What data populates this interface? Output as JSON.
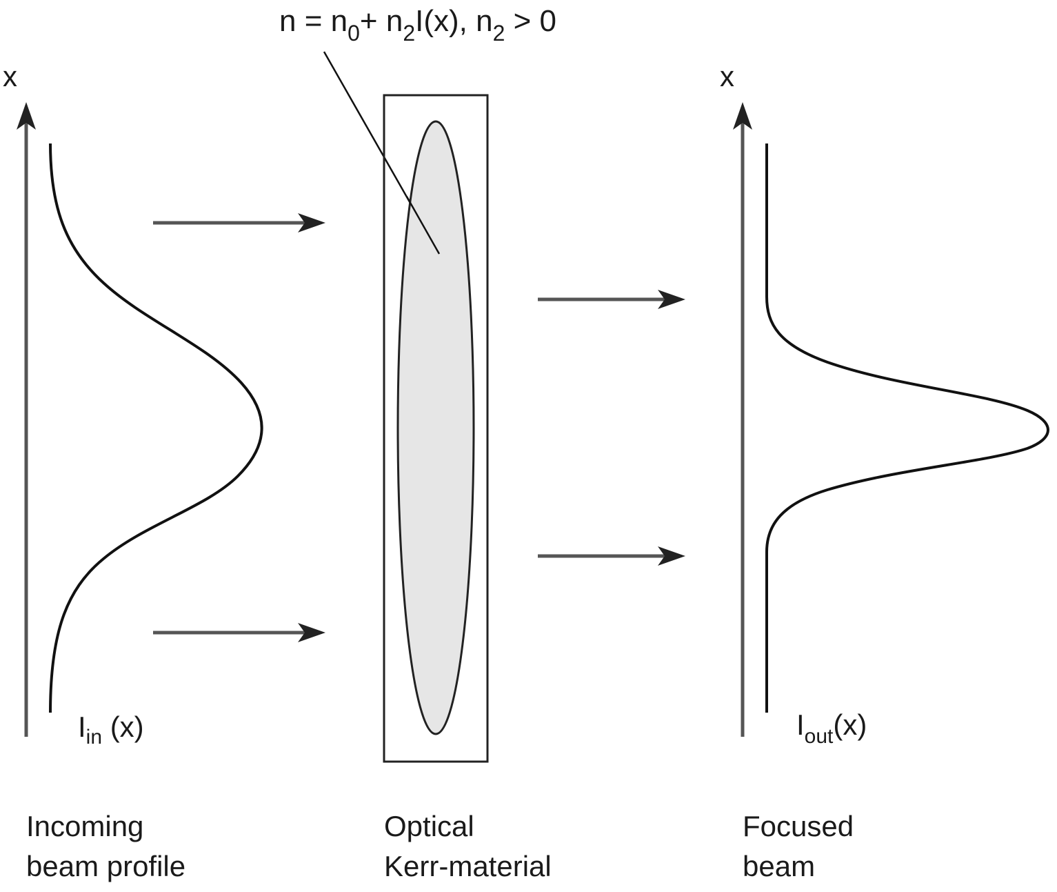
{
  "formula": {
    "n": "n",
    "eq": " = ",
    "n0_base": "n",
    "n0_sub": "0",
    "plus": "+ ",
    "n2_base": "n",
    "n2_sub": "2",
    "intensity": "I(x), ",
    "n2b_base": "n",
    "n2b_sub": "2",
    "gt_zero": " > 0"
  },
  "left_axis": {
    "axis_label": "x",
    "curve_label_base": "I",
    "curve_label_sub": "in",
    "curve_label_arg": " (x)"
  },
  "right_axis": {
    "axis_label": "x",
    "curve_label_base": "I",
    "curve_label_sub": "out",
    "curve_label_arg": "(x)"
  },
  "captions": {
    "incoming_line1": "Incoming",
    "incoming_line2": "beam profile",
    "material_line1": "Optical",
    "material_line2": "Kerr-material",
    "focused_line1": "Focused",
    "focused_line2": "beam"
  },
  "colors": {
    "lens_fill": "#e6e6e6",
    "axis": "#555555",
    "curve": "#111111"
  },
  "icons": {
    "axis_arrow": "up-arrow-icon",
    "beam_arrow": "right-arrow-icon"
  }
}
